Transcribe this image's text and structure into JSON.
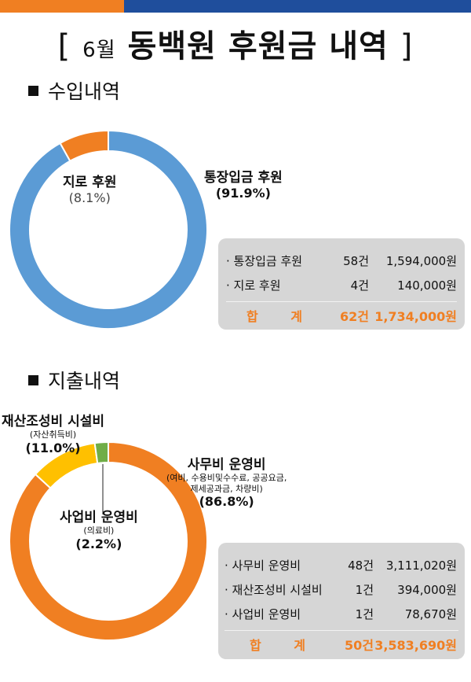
{
  "colors": {
    "accent_orange": "#F07F22",
    "accent_blue": "#1F4E9C",
    "slice_blue": "#5B9BD5",
    "slice_yellow": "#FFC000",
    "slice_green": "#70AD47",
    "box_gray": "#D6D6D6"
  },
  "page": {
    "title_open": "[",
    "title_num": "6",
    "title_month": "월",
    "title_main": "동백원 후원금 내역",
    "title_close": "]"
  },
  "income": {
    "heading": "수입내역",
    "labels": [
      {
        "name": "지로 후원",
        "pct": "(8.1%)"
      },
      {
        "name": "통장입금 후원",
        "pct": "(91.9%)"
      }
    ],
    "table": {
      "rows": [
        {
          "label": "· 통장입금 후원",
          "count": "58건",
          "amount": "1,594,000원"
        },
        {
          "label": "· 지로 후원",
          "count": "4건",
          "amount": "140,000원"
        }
      ],
      "total": {
        "label": "합 계",
        "count": "62건",
        "amount": "1,734,000원"
      }
    }
  },
  "expense": {
    "heading": "지출내역",
    "labels": [
      {
        "name": "재산조성비 시설비",
        "sub": "(자산취득비)",
        "pct": "(11.0%)"
      },
      {
        "name": "사무비 운영비",
        "sub1": "(여비, 수용비및수수료, 공공요금,",
        "sub2": "제세공과금, 차량비)",
        "pct": "(86.8%)"
      },
      {
        "name": "사업비 운영비",
        "sub": "(의료비)",
        "pct": "(2.2%)"
      }
    ],
    "table": {
      "rows": [
        {
          "label": "· 사무비 운영비",
          "count": "48건",
          "amount": "3,111,020원"
        },
        {
          "label": "· 재산조성비 시설비",
          "count": "1건",
          "amount": "394,000원"
        },
        {
          "label": "· 사업비 운영비",
          "count": "1건",
          "amount": "78,670원"
        }
      ],
      "total": {
        "label": "합 계",
        "count": "50건",
        "amount": "3,583,690원"
      }
    }
  },
  "chart_data": [
    {
      "type": "pie",
      "categories": [
        "통장입금 후원",
        "지로 후원"
      ],
      "values": [
        91.9,
        8.1
      ],
      "colors": [
        "#5B9BD5",
        "#F07F22"
      ]
    },
    {
      "type": "pie",
      "categories": [
        "사무비 운영비",
        "재산조성비 시설비",
        "사업비 운영비"
      ],
      "values": [
        86.8,
        11.0,
        2.2
      ],
      "colors": [
        "#F07F22",
        "#FFC000",
        "#70AD47"
      ]
    }
  ]
}
